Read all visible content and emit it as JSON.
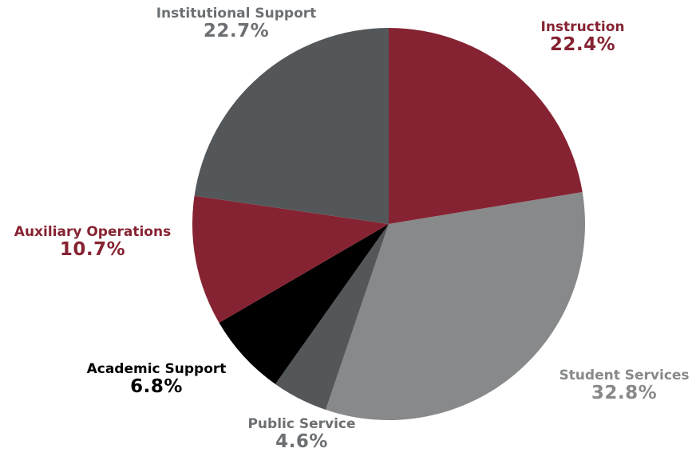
{
  "chart_data": {
    "type": "pie",
    "slices": [
      {
        "label": "Instruction",
        "value": 22.4,
        "display": "22.4%",
        "color": "#862332"
      },
      {
        "label": "Student Services",
        "value": 32.8,
        "display": "32.8%",
        "color": "#87898a"
      },
      {
        "label": "Public Service",
        "value": 4.6,
        "display": "4.6%",
        "color": "#54575a"
      },
      {
        "label": "Academic Support",
        "value": 6.8,
        "display": "6.8%",
        "color": "#000000"
      },
      {
        "label": "Auxiliary Operations",
        "value": 10.7,
        "display": "10.7%",
        "color": "#862332"
      },
      {
        "label": "Institutional Support",
        "value": 22.7,
        "display": "22.7%",
        "color": "#54575a"
      }
    ],
    "label_colors": {
      "Instruction": "#862332",
      "Student Services": "#87898a",
      "Public Service": "#6d7073",
      "Academic Support": "#000000",
      "Auxiliary Operations": "#862332",
      "Institutional Support": "#6d7073"
    },
    "start_angle_deg": 0,
    "direction": "clockwise",
    "legend": "none"
  }
}
